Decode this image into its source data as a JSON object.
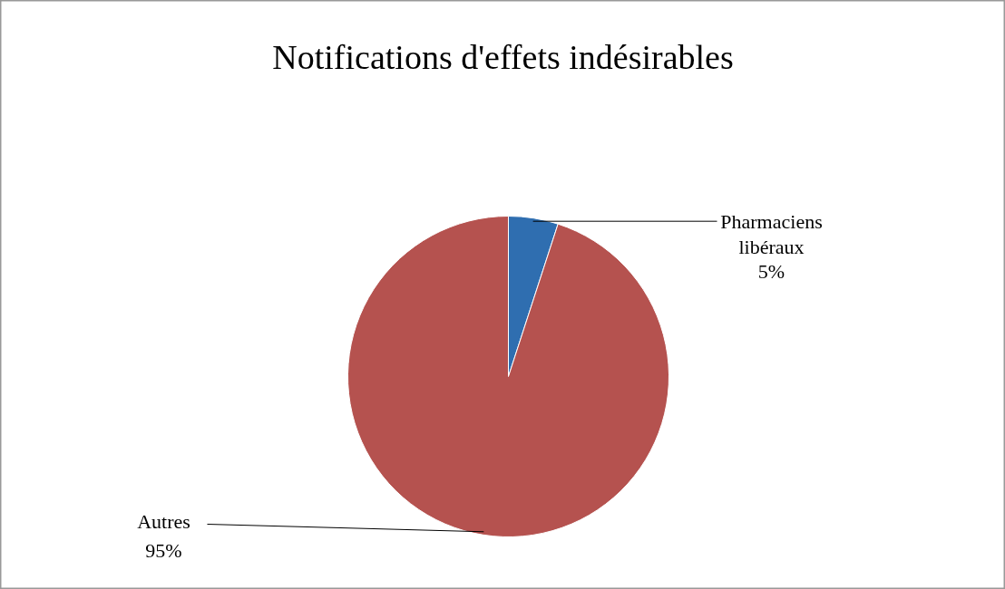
{
  "chart_data": {
    "type": "pie",
    "title": "Notifications d'effets indésirables",
    "categories": [
      "Pharmaciens libéraux",
      "Autres"
    ],
    "values": [
      5,
      95
    ],
    "colors": [
      "#2f6eb0",
      "#b5524f"
    ],
    "value_labels": [
      "5%",
      "95%"
    ]
  }
}
